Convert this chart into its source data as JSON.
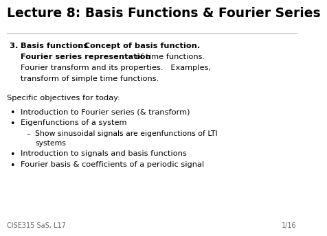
{
  "title": "Lecture 8: Basis Functions & Fourier Series",
  "background_color": "#ffffff",
  "title_color": "#000000",
  "title_fontsize": 13.5,
  "body_fontsize": 8.2,
  "sub_fontsize": 7.8,
  "footer_fontsize": 7.0,
  "footer_left": "CISE315 SaS, L17",
  "footer_right": "1/16",
  "objectives_header": "Specific objectives for today:",
  "bullet_items": [
    "Introduction to Fourier series (& transform)",
    "Eigenfunctions of a system",
    "Introduction to signals and basis functions",
    "Fourier basis & coefficients of a periodic signal"
  ]
}
